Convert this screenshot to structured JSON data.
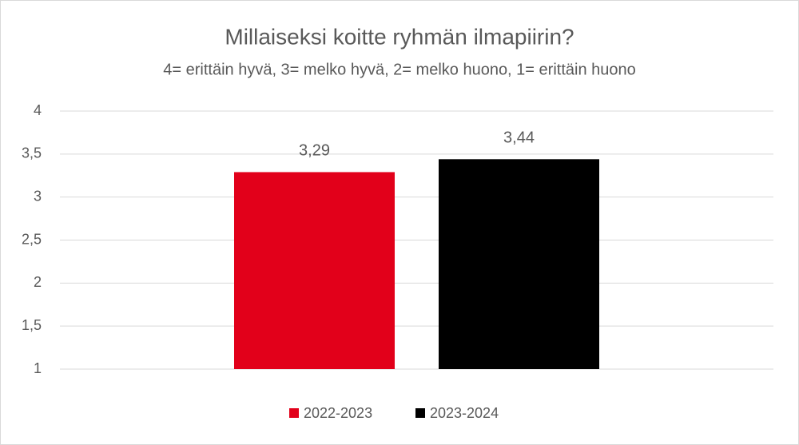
{
  "chart_data": {
    "type": "bar",
    "title": "Millaiseksi koitte ryhmän ilmapiirin?",
    "subtitle": "4= erittäin hyvä, 3= melko hyvä, 2= melko huono, 1= erittäin huono",
    "categories": [
      null
    ],
    "series": [
      {
        "name": "2022-2023",
        "color": "#e2001a",
        "values": [
          3.29
        ],
        "value_labels": [
          "3,29"
        ]
      },
      {
        "name": "2023-2024",
        "color": "#000000",
        "values": [
          3.44
        ],
        "value_labels": [
          "3,44"
        ]
      }
    ],
    "ylim": [
      1,
      4
    ],
    "yticks": [
      1,
      {
        "value": 1.5,
        "label": "1,5"
      },
      2,
      {
        "value": 2.5,
        "label": "2,5"
      },
      3,
      {
        "value": 3.5,
        "label": "3,5"
      },
      4
    ],
    "grid": true,
    "legend": "bottom"
  }
}
